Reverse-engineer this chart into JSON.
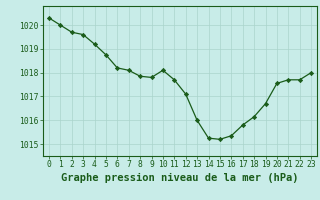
{
  "x": [
    0,
    1,
    2,
    3,
    4,
    5,
    6,
    7,
    8,
    9,
    10,
    11,
    12,
    13,
    14,
    15,
    16,
    17,
    18,
    19,
    20,
    21,
    22,
    23
  ],
  "y": [
    1020.3,
    1020.0,
    1019.7,
    1019.6,
    1019.2,
    1018.75,
    1018.2,
    1018.1,
    1017.85,
    1017.8,
    1018.1,
    1017.7,
    1017.1,
    1016.0,
    1015.25,
    1015.2,
    1015.35,
    1015.8,
    1016.15,
    1016.7,
    1017.55,
    1017.7,
    1017.7,
    1018.0
  ],
  "ylim": [
    1014.5,
    1020.8
  ],
  "xlim": [
    -0.5,
    23.5
  ],
  "yticks": [
    1015,
    1016,
    1017,
    1018,
    1019,
    1020
  ],
  "xticks": [
    0,
    1,
    2,
    3,
    4,
    5,
    6,
    7,
    8,
    9,
    10,
    11,
    12,
    13,
    14,
    15,
    16,
    17,
    18,
    19,
    20,
    21,
    22,
    23
  ],
  "xlabel": "Graphe pression niveau de la mer (hPa)",
  "line_color": "#1a5c1a",
  "marker": "D",
  "marker_size": 2.2,
  "bg_color": "#c8ece8",
  "grid_color": "#aad4cc",
  "axis_color": "#1a5c1a",
  "label_color": "#1a5c1a",
  "tick_label_fontsize": 5.8,
  "xlabel_fontsize": 7.5
}
